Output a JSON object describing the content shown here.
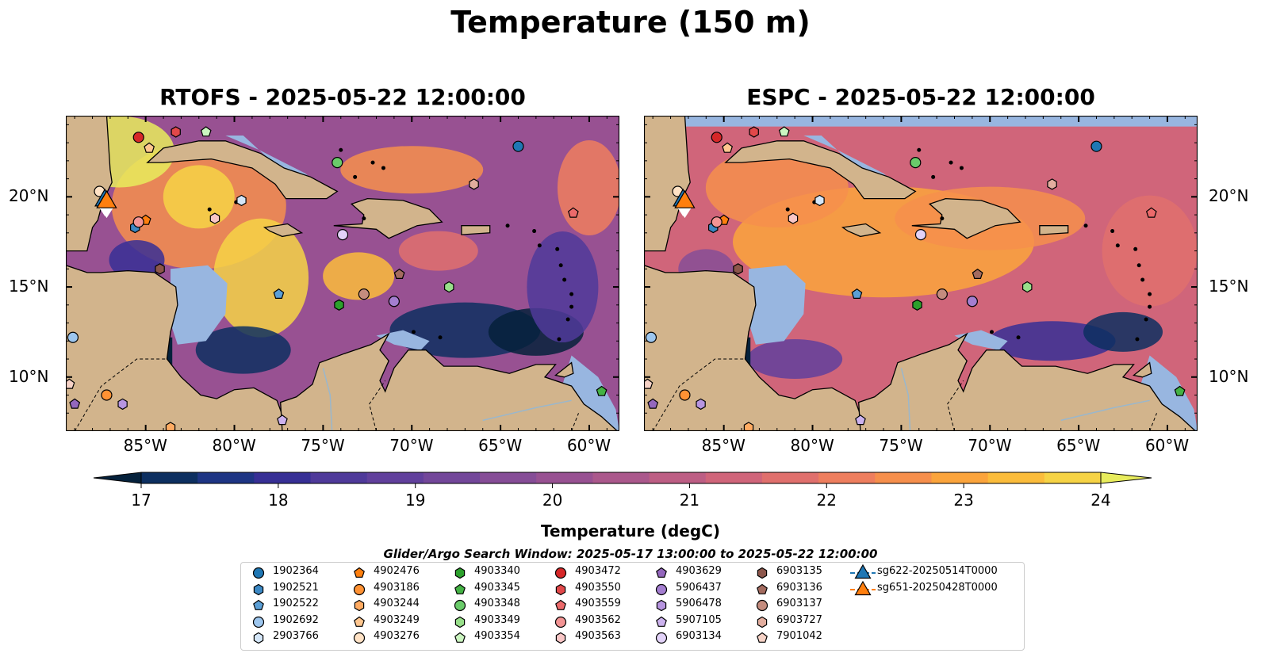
{
  "main_title": "Temperature (150 m)",
  "panels": [
    {
      "title": "RTOFS - 2025-05-22 12:00:00",
      "model": "RTOFS"
    },
    {
      "title": "ESPC - 2025-05-22 12:00:00",
      "model": "ESPC"
    }
  ],
  "map": {
    "projection": "PlateCarree",
    "lon_range": [
      -89.5,
      -58.3
    ],
    "lat_range": [
      7.0,
      24.5
    ],
    "xticks": [
      -85,
      -80,
      -75,
      -70,
      -65,
      -60
    ],
    "xtick_labels": [
      "85°W",
      "80°W",
      "75°W",
      "70°W",
      "65°W",
      "60°W"
    ],
    "yticks": [
      10,
      15,
      20
    ],
    "ytick_labels": [
      "10°N",
      "15°N",
      "20°N"
    ],
    "land_color": "#d2b48c",
    "shallow_color": "#98b6e0",
    "coastline_color": "#000000",
    "border_style": "dashed",
    "river_color": "#9ab7cc"
  },
  "colorbar": {
    "label": "Temperature (degC)",
    "min": 16.5,
    "max": 24.5,
    "step": 0.5,
    "ticks": [
      17,
      18,
      19,
      20,
      21,
      22,
      23,
      24
    ],
    "extend": "both",
    "colormap": "thermal",
    "colors": [
      "#05213b",
      "#0d2f60",
      "#1e3584",
      "#372f95",
      "#4f3a9a",
      "#61409c",
      "#73479a",
      "#864d97",
      "#985192",
      "#ab588c",
      "#bd5e84",
      "#d0657a",
      "#e0706d",
      "#ee7e5e",
      "#f68f4c",
      "#fba43c",
      "#fbbc3b",
      "#f6d345",
      "#e8ec5c"
    ]
  },
  "search_window": "Glider/Argo Search Window: 2025-05-17 13:00:00 to 2025-05-22 12:00:00",
  "legend": {
    "items": [
      {
        "label": "1902364",
        "marker": "circle",
        "color": "#1f77b4"
      },
      {
        "label": "1902521",
        "marker": "hexagon",
        "color": "#3b88c4"
      },
      {
        "label": "1902522",
        "marker": "pentagon",
        "color": "#5b9fd6"
      },
      {
        "label": "1902692",
        "marker": "circle",
        "color": "#9dc6ee"
      },
      {
        "label": "2903766",
        "marker": "hexagon",
        "color": "#d4e6f8"
      },
      {
        "label": "4902476",
        "marker": "pentagon",
        "color": "#ff7f0e"
      },
      {
        "label": "4903186",
        "marker": "circle",
        "color": "#ff9234"
      },
      {
        "label": "4903244",
        "marker": "hexagon",
        "color": "#ffab62"
      },
      {
        "label": "4903249",
        "marker": "pentagon",
        "color": "#ffc68f"
      },
      {
        "label": "4903276",
        "marker": "circle",
        "color": "#ffe2c5"
      },
      {
        "label": "4903340",
        "marker": "hexagon",
        "color": "#2ca02c"
      },
      {
        "label": "4903345",
        "marker": "pentagon",
        "color": "#44b244"
      },
      {
        "label": "4903348",
        "marker": "circle",
        "color": "#6acb6a"
      },
      {
        "label": "4903349",
        "marker": "hexagon",
        "color": "#98df8a"
      },
      {
        "label": "4903354",
        "marker": "pentagon",
        "color": "#cbf5c0"
      },
      {
        "label": "4903472",
        "marker": "circle",
        "color": "#d62728"
      },
      {
        "label": "4903550",
        "marker": "hexagon",
        "color": "#e2484a"
      },
      {
        "label": "4903559",
        "marker": "pentagon",
        "color": "#ec6a6b"
      },
      {
        "label": "4903562",
        "marker": "circle",
        "color": "#f39494"
      },
      {
        "label": "4903563",
        "marker": "hexagon",
        "color": "#f9c6c6"
      },
      {
        "label": "4903629",
        "marker": "pentagon",
        "color": "#9467bd"
      },
      {
        "label": "5906437",
        "marker": "circle",
        "color": "#a47ed0"
      },
      {
        "label": "5906478",
        "marker": "hexagon",
        "color": "#b795e0"
      },
      {
        "label": "5907105",
        "marker": "pentagon",
        "color": "#ccb2ee"
      },
      {
        "label": "6903134",
        "marker": "circle",
        "color": "#e2d2f8"
      },
      {
        "label": "6903135",
        "marker": "hexagon",
        "color": "#8c564b"
      },
      {
        "label": "6903136",
        "marker": "pentagon",
        "color": "#a36b5f"
      },
      {
        "label": "6903137",
        "marker": "circle",
        "color": "#c48c7e"
      },
      {
        "label": "6903727",
        "marker": "hexagon",
        "color": "#e2ad9e"
      },
      {
        "label": "7901042",
        "marker": "pentagon",
        "color": "#f6d2c6"
      },
      {
        "label": "sg622-20250514T0000",
        "marker": "triangle",
        "color": "#1f77b4"
      },
      {
        "label": "sg651-20250428T0000",
        "marker": "triangle",
        "color": "#ff7f0e"
      }
    ]
  },
  "floats": [
    {
      "id": "1902364",
      "lon": -64.0,
      "lat": 22.8
    },
    {
      "id": "1902521",
      "lon": -85.6,
      "lat": 18.3
    },
    {
      "id": "1902522",
      "lon": -77.5,
      "lat": 14.6
    },
    {
      "id": "1902692",
      "lon": -89.1,
      "lat": 12.2
    },
    {
      "id": "2903766",
      "lon": -79.6,
      "lat": 19.8
    },
    {
      "id": "4902476",
      "lon": -85.0,
      "lat": 18.7
    },
    {
      "id": "4903186",
      "lon": -87.2,
      "lat": 9.0
    },
    {
      "id": "4903244",
      "lon": -83.6,
      "lat": 7.2
    },
    {
      "id": "4903249",
      "lon": -84.8,
      "lat": 22.7
    },
    {
      "id": "4903276",
      "lon": -87.6,
      "lat": 20.3
    },
    {
      "id": "4903340",
      "lon": -74.1,
      "lat": 14.0
    },
    {
      "id": "4903345",
      "lon": -59.3,
      "lat": 9.2
    },
    {
      "id": "4903348",
      "lon": -74.2,
      "lat": 21.9
    },
    {
      "id": "4903349",
      "lon": -67.9,
      "lat": 15.0
    },
    {
      "id": "4903354",
      "lon": -81.6,
      "lat": 23.6
    },
    {
      "id": "4903472",
      "lon": -85.4,
      "lat": 23.3
    },
    {
      "id": "4903550",
      "lon": -83.3,
      "lat": 23.6
    },
    {
      "id": "4903559",
      "lon": -60.9,
      "lat": 19.1
    },
    {
      "id": "4903562",
      "lon": -85.4,
      "lat": 18.6
    },
    {
      "id": "4903563",
      "lon": -81.1,
      "lat": 18.8
    },
    {
      "id": "4903629",
      "lon": -89.0,
      "lat": 8.5
    },
    {
      "id": "5906437",
      "lon": -71.0,
      "lat": 14.2
    },
    {
      "id": "5906478",
      "lon": -86.3,
      "lat": 8.5
    },
    {
      "id": "5907105",
      "lon": -77.3,
      "lat": 7.6
    },
    {
      "id": "6903134",
      "lon": -73.9,
      "lat": 17.9
    },
    {
      "id": "6903135",
      "lon": -84.2,
      "lat": 16.0
    },
    {
      "id": "6903136",
      "lon": -70.7,
      "lat": 15.7
    },
    {
      "id": "6903137",
      "lon": -72.7,
      "lat": 14.6
    },
    {
      "id": "6903727",
      "lon": -66.5,
      "lat": 20.7
    },
    {
      "id": "7901042",
      "lon": -89.3,
      "lat": 9.6
    }
  ],
  "gliders": [
    {
      "id": "sg622-20250514T0000",
      "lon": -87.3,
      "lat": 19.8
    },
    {
      "id": "sg651-20250428T0000",
      "lon": -87.2,
      "lat": 19.7
    }
  ]
}
